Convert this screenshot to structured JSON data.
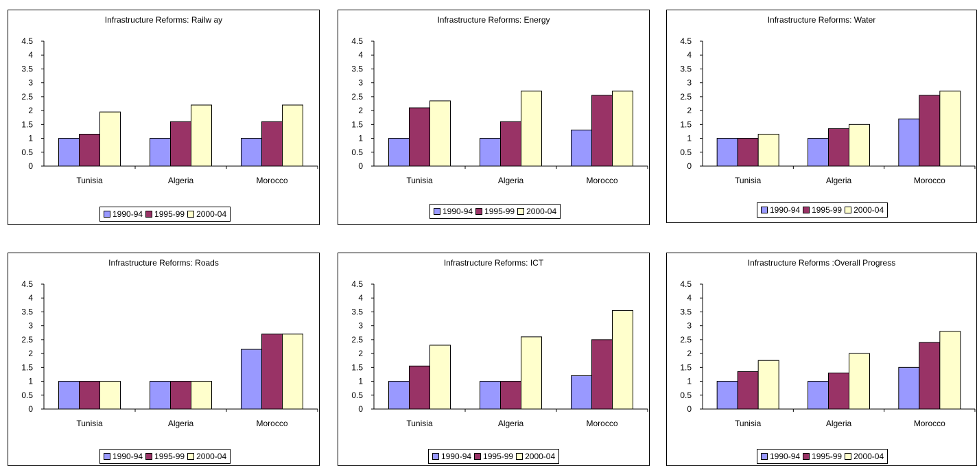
{
  "chart_data": [
    {
      "type": "bar",
      "title": "Infrastructure Reforms: Railw ay",
      "categories": [
        "Tunisia",
        "Algeria",
        "Morocco"
      ],
      "series": [
        {
          "name": "1990-94",
          "values": [
            1.0,
            1.0,
            1.0
          ]
        },
        {
          "name": "1995-99",
          "values": [
            1.15,
            1.6,
            1.6
          ]
        },
        {
          "name": "2000-04",
          "values": [
            1.95,
            2.2,
            2.2
          ]
        }
      ],
      "yticks": [
        "0",
        "0.5",
        "1",
        "1.5",
        "2",
        "2.5",
        "3",
        "3.5",
        "4",
        "4.5"
      ],
      "ylim": [
        0,
        4.5
      ],
      "legend": "bottom",
      "grid": false
    },
    {
      "type": "bar",
      "title": "Infrastructure Reforms:  Energy",
      "categories": [
        "Tunisia",
        "Algeria",
        "Morocco"
      ],
      "series": [
        {
          "name": "1990-94",
          "values": [
            1.0,
            1.0,
            1.3
          ]
        },
        {
          "name": "1995-99",
          "values": [
            2.1,
            1.6,
            2.55
          ]
        },
        {
          "name": "2000-04",
          "values": [
            2.35,
            2.7,
            2.7
          ]
        }
      ],
      "yticks": [
        "0",
        "0.5",
        "1",
        "1.5",
        "2",
        "2.5",
        "3",
        "3.5",
        "4",
        "4.5"
      ],
      "ylim": [
        0,
        4.5
      ],
      "legend": "bottom",
      "grid": false
    },
    {
      "type": "bar",
      "title": "Infrastructure Reforms: Water",
      "categories": [
        "Tunisia",
        "Algeria",
        "Morocco"
      ],
      "series": [
        {
          "name": "1990-94",
          "values": [
            1.0,
            1.0,
            1.7
          ]
        },
        {
          "name": "1995-99",
          "values": [
            1.0,
            1.35,
            2.55
          ]
        },
        {
          "name": "2000-04",
          "values": [
            1.15,
            1.5,
            2.7
          ]
        }
      ],
      "yticks": [
        "0",
        "0.5",
        "1",
        "1.5",
        "2",
        "2.5",
        "3",
        "3.5",
        "4",
        "4.5"
      ],
      "ylim": [
        0,
        4.5
      ],
      "legend": "bottom",
      "grid": false
    },
    {
      "type": "bar",
      "title": "Infrastructure Reforms: Roads",
      "categories": [
        "Tunisia",
        "Algeria",
        "Morocco"
      ],
      "series": [
        {
          "name": "1990-94",
          "values": [
            1.0,
            1.0,
            2.15
          ]
        },
        {
          "name": "1995-99",
          "values": [
            1.0,
            1.0,
            2.7
          ]
        },
        {
          "name": "2000-04",
          "values": [
            1.0,
            1.0,
            2.7
          ]
        }
      ],
      "yticks": [
        "0",
        "0.5",
        "1",
        "1.5",
        "2",
        "2.5",
        "3",
        "3.5",
        "4",
        "4.5"
      ],
      "ylim": [
        0,
        4.5
      ],
      "legend": "bottom",
      "grid": false
    },
    {
      "type": "bar",
      "title": "Infrastructure Reforms: ICT",
      "categories": [
        "Tunisia",
        "Algeria",
        "Morocco"
      ],
      "series": [
        {
          "name": "1990-94",
          "values": [
            1.0,
            1.0,
            1.2
          ]
        },
        {
          "name": "1995-99",
          "values": [
            1.55,
            1.0,
            2.5
          ]
        },
        {
          "name": "2000-04",
          "values": [
            2.3,
            2.6,
            3.55
          ]
        }
      ],
      "yticks": [
        "0",
        "0.5",
        "1",
        "1.5",
        "2",
        "2.5",
        "3",
        "3.5",
        "4",
        "4.5"
      ],
      "ylim": [
        0,
        4.5
      ],
      "legend": "bottom",
      "grid": false
    },
    {
      "type": "bar",
      "title": "Infrastructure Reforms :Overall Progress",
      "categories": [
        "Tunisia",
        "Algeria",
        "Morocco"
      ],
      "series": [
        {
          "name": "1990-94",
          "values": [
            1.0,
            1.0,
            1.5
          ]
        },
        {
          "name": "1995-99",
          "values": [
            1.35,
            1.3,
            2.4
          ]
        },
        {
          "name": "2000-04",
          "values": [
            1.75,
            2.0,
            2.8
          ]
        }
      ],
      "yticks": [
        "0",
        "0.5",
        "1",
        "1.5",
        "2",
        "2.5",
        "3",
        "3.5",
        "4",
        "4.5"
      ],
      "ylim": [
        0,
        4.5
      ],
      "legend": "bottom",
      "grid": false
    }
  ],
  "colors": {
    "series": [
      "#9999FF",
      "#993366",
      "#FFFFCC"
    ],
    "outline": "#000000"
  }
}
